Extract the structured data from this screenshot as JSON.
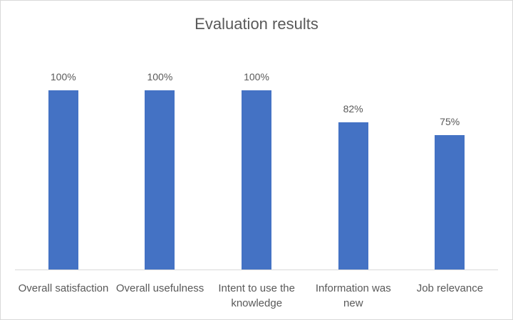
{
  "chart_data": {
    "type": "bar",
    "title": "Evaluation results",
    "categories": [
      "Overall satisfaction",
      "Overall usefulness",
      "Intent to use the knowledge",
      "Information was new",
      "Job relevance"
    ],
    "values": [
      100,
      100,
      100,
      82,
      75
    ],
    "value_labels": [
      "100%",
      "100%",
      "100%",
      "82%",
      "75%"
    ],
    "color": "#4472c4"
  }
}
